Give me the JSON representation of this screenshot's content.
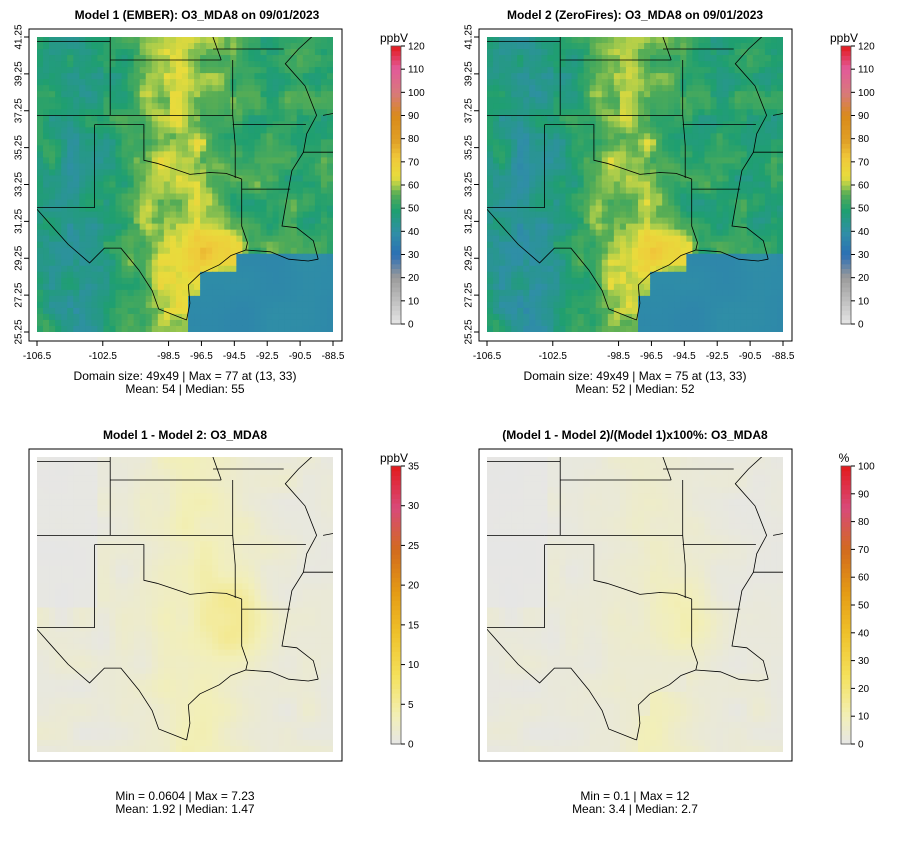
{
  "chart_data": [
    {
      "type": "heatmap",
      "title": "Model 1 (EMBER): O3_MDA8 on 09/01/2023",
      "unit": "ppbV",
      "colorbar_ticks": [
        "0",
        "10",
        "20",
        "30",
        "40",
        "50",
        "60",
        "70",
        "80",
        "90",
        "100",
        "110",
        "120"
      ],
      "colorbar_range": [
        0,
        120
      ],
      "x_ticks": [
        "-106.5",
        "-102.5",
        "-98.5",
        "-96.5",
        "-94.5",
        "-92.5",
        "-90.5",
        "-88.5"
      ],
      "y_ticks": [
        "25.25",
        "27.25",
        "29.25",
        "31.25",
        "33.25",
        "35.25",
        "37.25",
        "39.25",
        "41.25"
      ],
      "stats_line1": "Domain size: 49x49 | Max = 77 at (13, 33)",
      "stats_line2": "Mean: 54 |  Median: 55",
      "mean": 54,
      "median": 55,
      "max": 77,
      "palette": "diverging-ozone"
    },
    {
      "type": "heatmap",
      "title": "Model 2 (ZeroFires): O3_MDA8 on 09/01/2023",
      "unit": "ppbV",
      "colorbar_ticks": [
        "0",
        "10",
        "20",
        "30",
        "40",
        "50",
        "60",
        "70",
        "80",
        "90",
        "100",
        "110",
        "120"
      ],
      "colorbar_range": [
        0,
        120
      ],
      "x_ticks": [
        "-106.5",
        "-102.5",
        "-98.5",
        "-96.5",
        "-94.5",
        "-92.5",
        "-90.5",
        "-88.5"
      ],
      "y_ticks": [
        "25.25",
        "27.25",
        "29.25",
        "31.25",
        "33.25",
        "35.25",
        "37.25",
        "39.25",
        "41.25"
      ],
      "stats_line1": "Domain size: 49x49 | Max = 75 at (13, 33)",
      "stats_line2": "Mean: 52 |  Median: 52",
      "mean": 52,
      "median": 52,
      "max": 75,
      "palette": "diverging-ozone"
    },
    {
      "type": "heatmap",
      "title": "Model 1 - Model 2: O3_MDA8",
      "unit": "ppbV",
      "colorbar_ticks": [
        "0",
        "5",
        "10",
        "15",
        "20",
        "25",
        "30",
        "35"
      ],
      "colorbar_range": [
        0,
        35
      ],
      "stats_line1": "Min = 0.0604 | Max = 7.23",
      "stats_line2": "Mean: 1.92 |  Median: 1.47",
      "min": 0.0604,
      "max": 7.23,
      "mean": 1.92,
      "median": 1.47,
      "palette": "sequential-yellow-red"
    },
    {
      "type": "heatmap",
      "title": "(Model 1 - Model 2)/(Model 1)x100%: O3_MDA8",
      "unit": "%",
      "colorbar_ticks": [
        "0",
        "10",
        "20",
        "30",
        "40",
        "50",
        "60",
        "70",
        "80",
        "90",
        "100"
      ],
      "colorbar_range": [
        0,
        100
      ],
      "stats_line1": "Min = 0.1 | Max = 12",
      "stats_line2": "Mean: 3.4 |  Median: 2.7",
      "min": 0.1,
      "max": 12,
      "mean": 3.4,
      "median": 2.7,
      "palette": "sequential-yellow-red"
    }
  ]
}
